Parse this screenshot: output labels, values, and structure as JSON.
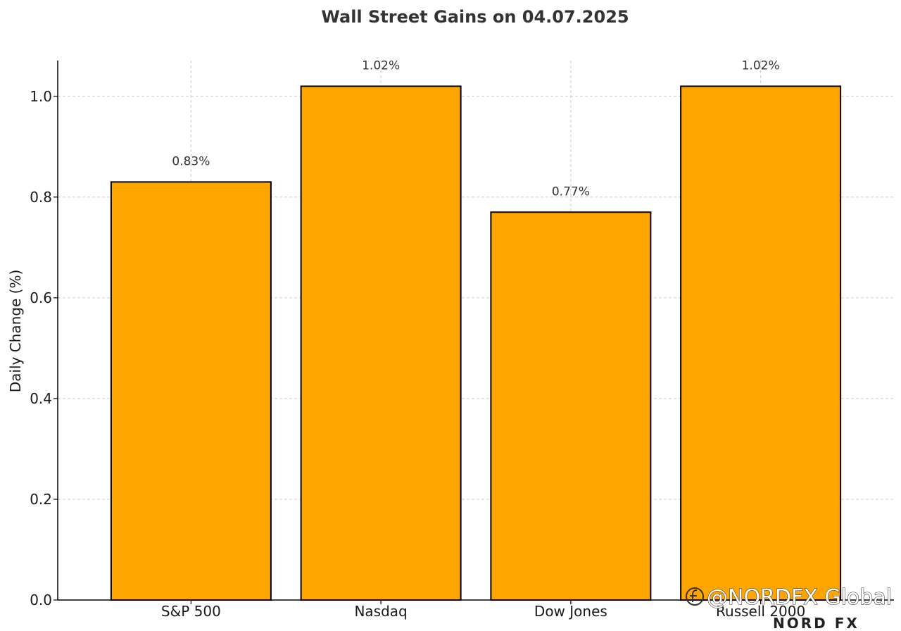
{
  "chart_data": {
    "type": "bar",
    "title": "Wall Street Gains on 04.07.2025",
    "xlabel": "",
    "ylabel": "Daily Change (%)",
    "categories": [
      "S&P 500",
      "Nasdaq",
      "Dow Jones",
      "Russell 2000"
    ],
    "values": [
      0.83,
      1.02,
      0.77,
      1.02
    ],
    "value_labels": [
      "0.83%",
      "1.02%",
      "0.77%",
      "1.02%"
    ],
    "ylim": [
      0,
      1.071
    ],
    "yticks": [
      0.0,
      0.2,
      0.4,
      0.6,
      0.8,
      1.0
    ],
    "ytick_labels": [
      "0.0",
      "0.2",
      "0.4",
      "0.6",
      "0.8",
      "1.0"
    ],
    "grid": true,
    "bar_color": "#FFA500",
    "bar_edge_color": "#000000"
  },
  "watermark": {
    "text": "@NORDFX Global",
    "icon": "social-logo-icon"
  },
  "brand": {
    "text": "NORD FX",
    "accent_color": "#e2574c"
  }
}
